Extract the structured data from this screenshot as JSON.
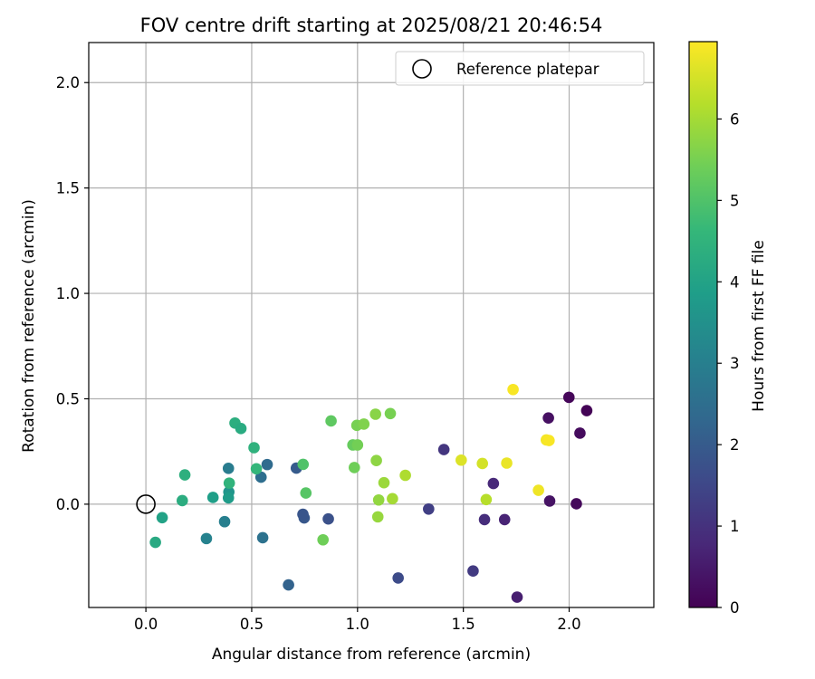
{
  "chart_data": {
    "type": "scatter",
    "title": "FOV centre drift starting at 2025/08/21 20:46:54",
    "xlabel": "Angular distance from reference (arcmin)",
    "ylabel": "Rotation from reference (arcmin)",
    "xlim": [
      -0.27,
      2.4
    ],
    "ylim": [
      -0.49,
      2.19
    ],
    "x_ticks": [
      0.0,
      0.5,
      1.0,
      1.5,
      2.0
    ],
    "y_ticks": [
      0.0,
      0.5,
      1.0,
      1.5,
      2.0
    ],
    "x_tick_labels": [
      "0.0",
      "0.5",
      "1.0",
      "1.5",
      "2.0"
    ],
    "y_tick_labels": [
      "0.0",
      "0.5",
      "1.0",
      "1.5",
      "2.0"
    ],
    "grid": true,
    "legend": {
      "placement": "top-right",
      "entries": [
        "Reference platepar"
      ]
    },
    "reference_point": {
      "x": 0.0,
      "y": 0.0,
      "marker": "open-circle",
      "color": "#000000"
    },
    "colorbar": {
      "label": "Hours from first FF file",
      "range": [
        0,
        6.95
      ],
      "ticks": [
        0,
        1,
        2,
        3,
        4,
        5,
        6
      ],
      "tick_labels": [
        "0",
        "1",
        "2",
        "3",
        "4",
        "5",
        "6"
      ],
      "colormap": "viridis",
      "colors": [
        "#440154",
        "#482878",
        "#3e4989",
        "#31688e",
        "#26828e",
        "#1f9e89",
        "#35b779",
        "#6ece58",
        "#b5de2b",
        "#fde725"
      ]
    },
    "series": [
      {
        "points": [
          {
            "x": 1.999,
            "y": 0.507,
            "t": 0.1
          },
          {
            "x": 2.083,
            "y": 0.444,
            "t": 0.05
          },
          {
            "x": 2.051,
            "y": 0.337,
            "t": 0.2
          },
          {
            "x": 1.902,
            "y": 0.409,
            "t": 0.3
          },
          {
            "x": 2.034,
            "y": 0.002,
            "t": 0.15
          },
          {
            "x": 1.908,
            "y": 0.015,
            "t": 0.35
          },
          {
            "x": 1.754,
            "y": -0.441,
            "t": 0.6
          },
          {
            "x": 1.695,
            "y": -0.073,
            "t": 0.7
          },
          {
            "x": 1.642,
            "y": 0.098,
            "t": 0.8
          },
          {
            "x": 1.6,
            "y": -0.073,
            "t": 0.9
          },
          {
            "x": 1.546,
            "y": -0.317,
            "t": 1.2
          },
          {
            "x": 1.408,
            "y": 0.259,
            "t": 1.1
          },
          {
            "x": 1.336,
            "y": -0.023,
            "t": 1.3
          },
          {
            "x": 1.192,
            "y": -0.35,
            "t": 1.6
          },
          {
            "x": 0.862,
            "y": -0.07,
            "t": 1.75
          },
          {
            "x": 0.748,
            "y": -0.065,
            "t": 1.9
          },
          {
            "x": 0.742,
            "y": -0.048,
            "t": 1.85
          },
          {
            "x": 0.711,
            "y": 0.171,
            "t": 2.0
          },
          {
            "x": 0.674,
            "y": -0.383,
            "t": 2.2
          },
          {
            "x": 0.573,
            "y": 0.188,
            "t": 2.4
          },
          {
            "x": 0.544,
            "y": 0.128,
            "t": 2.5
          },
          {
            "x": 0.552,
            "y": -0.159,
            "t": 2.6
          },
          {
            "x": 0.39,
            "y": 0.17,
            "t": 2.9
          },
          {
            "x": 0.372,
            "y": -0.083,
            "t": 3.0
          },
          {
            "x": 0.286,
            "y": -0.163,
            "t": 3.1
          },
          {
            "x": 0.392,
            "y": 0.058,
            "t": 3.6
          },
          {
            "x": 0.39,
            "y": 0.03,
            "t": 3.8
          },
          {
            "x": 0.317,
            "y": 0.032,
            "t": 3.9
          },
          {
            "x": 0.077,
            "y": -0.064,
            "t": 4.0
          },
          {
            "x": 0.045,
            "y": -0.181,
            "t": 4.2
          },
          {
            "x": 0.172,
            "y": 0.017,
            "t": 4.3
          },
          {
            "x": 0.184,
            "y": 0.139,
            "t": 4.4
          },
          {
            "x": 0.394,
            "y": 0.1,
            "t": 4.5
          },
          {
            "x": 0.421,
            "y": 0.385,
            "t": 4.35
          },
          {
            "x": 0.449,
            "y": 0.359,
            "t": 4.25
          },
          {
            "x": 0.511,
            "y": 0.268,
            "t": 4.45
          },
          {
            "x": 0.522,
            "y": 0.168,
            "t": 4.6
          },
          {
            "x": 0.743,
            "y": 0.189,
            "t": 5.0
          },
          {
            "x": 0.756,
            "y": 0.053,
            "t": 5.1
          },
          {
            "x": 0.837,
            "y": -0.169,
            "t": 5.4
          },
          {
            "x": 0.875,
            "y": 0.395,
            "t": 5.2
          },
          {
            "x": 0.978,
            "y": 0.281,
            "t": 5.3
          },
          {
            "x": 0.985,
            "y": 0.174,
            "t": 5.4
          },
          {
            "x": 0.997,
            "y": 0.374,
            "t": 5.5
          },
          {
            "x": 1.0,
            "y": 0.281,
            "t": 5.45
          },
          {
            "x": 1.03,
            "y": 0.38,
            "t": 5.6
          },
          {
            "x": 1.085,
            "y": 0.427,
            "t": 5.7
          },
          {
            "x": 1.089,
            "y": 0.207,
            "t": 5.75
          },
          {
            "x": 1.1,
            "y": 0.02,
            "t": 5.8
          },
          {
            "x": 1.096,
            "y": -0.06,
            "t": 5.85
          },
          {
            "x": 1.125,
            "y": 0.102,
            "t": 5.9
          },
          {
            "x": 1.155,
            "y": 0.43,
            "t": 5.5
          },
          {
            "x": 1.165,
            "y": 0.026,
            "t": 6.0
          },
          {
            "x": 1.226,
            "y": 0.137,
            "t": 6.1
          },
          {
            "x": 1.608,
            "y": 0.022,
            "t": 6.2
          },
          {
            "x": 1.49,
            "y": 0.209,
            "t": 6.6
          },
          {
            "x": 1.59,
            "y": 0.193,
            "t": 6.5
          },
          {
            "x": 1.705,
            "y": 0.195,
            "t": 6.75
          },
          {
            "x": 1.735,
            "y": 0.544,
            "t": 6.9
          },
          {
            "x": 1.855,
            "y": 0.066,
            "t": 6.8
          },
          {
            "x": 1.892,
            "y": 0.305,
            "t": 6.85
          },
          {
            "x": 1.905,
            "y": 0.302,
            "t": 6.9
          }
        ]
      }
    ]
  }
}
